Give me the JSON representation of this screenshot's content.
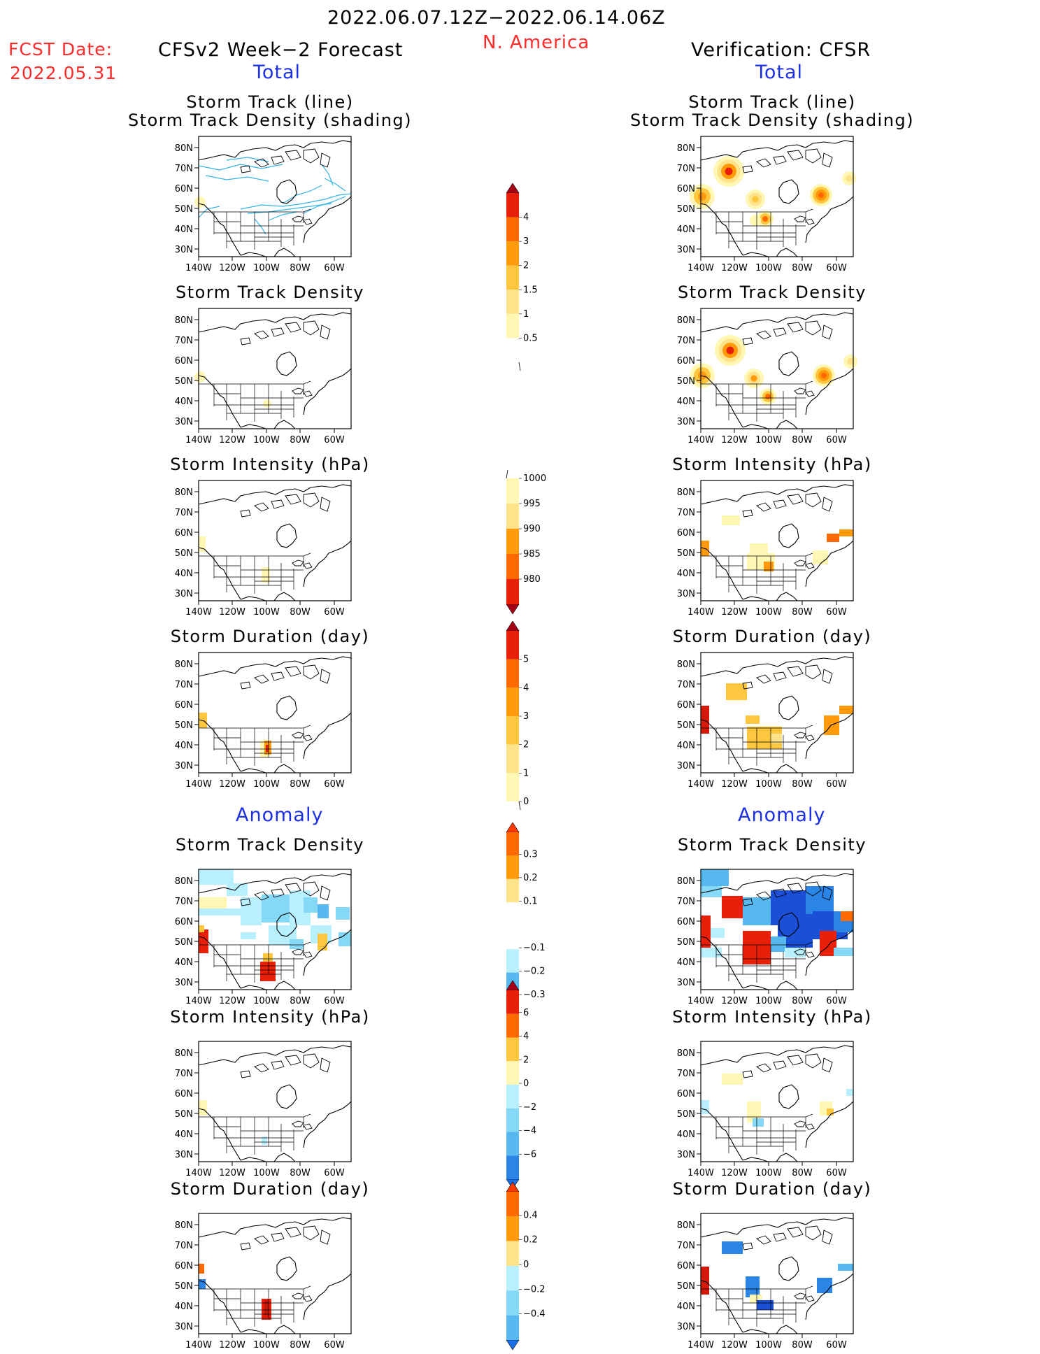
{
  "header": {
    "period": "2022.06.07.12Z−2022.06.14.06Z",
    "region": "N. America",
    "fcst_label": "FCST Date:",
    "fcst_date": "2022.05.31",
    "left_title": "CFSv2 Week−2 Forecast",
    "right_title": "Verification: CFSR",
    "total_label": "Total",
    "anomaly_label": "Anomaly"
  },
  "titles": {
    "track_line": "Storm Track (line)",
    "track_shading": "Storm Track Density (shading)",
    "density": "Storm Track Density",
    "intensity": "Storm Intensity (hPa)",
    "duration": "Storm Duration (day)"
  },
  "axes": {
    "lat_ticks": [
      "80N",
      "70N",
      "60N",
      "50N",
      "40N",
      "30N"
    ],
    "lon_ticks": [
      "140W",
      "120W",
      "100W",
      "80W",
      "60W"
    ]
  },
  "colorbars": {
    "total_density": [
      "0.5",
      "1",
      "1.5",
      "2",
      "3",
      "4"
    ],
    "total_intensity": [
      "1000",
      "995",
      "990",
      "985",
      "980"
    ],
    "total_duration": [
      "0",
      "1",
      "2",
      "3",
      "4",
      "5"
    ],
    "anom_density": [
      "0.3",
      "0.2",
      "0.1",
      "−0.1",
      "−0.2",
      "−0.3"
    ],
    "anom_intensity": [
      "6",
      "4",
      "2",
      "0",
      "−2",
      "−4",
      "−6"
    ],
    "anom_duration": [
      "0.4",
      "0.2",
      "0",
      "−0.2",
      "−0.4"
    ]
  },
  "colors": {
    "pos": [
      "#fff7b3",
      "#ffe38a",
      "#ffc63f",
      "#ff9a0a",
      "#ff6a00",
      "#e8200a",
      "#a60014"
    ],
    "neg": [
      "#b8f0ff",
      "#86d8f7",
      "#56b8ef",
      "#2b85e6",
      "#1a4fd6"
    ],
    "track_line": "#34b4e6"
  }
}
